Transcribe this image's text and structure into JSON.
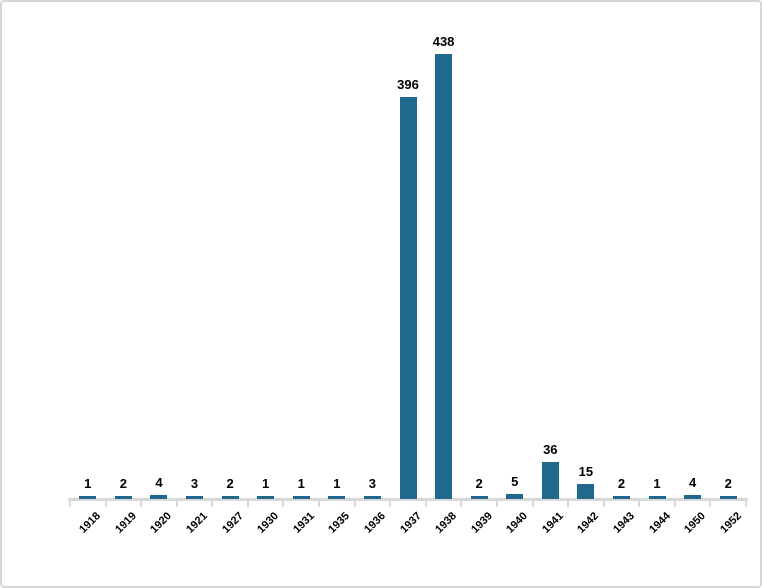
{
  "chart_data": {
    "type": "bar",
    "title": "",
    "xlabel": "",
    "ylabel": "",
    "categories": [
      "1918",
      "1919",
      "1920",
      "1921",
      "1927",
      "1930",
      "1931",
      "1935",
      "1936",
      "1937",
      "1938",
      "1939",
      "1940",
      "1941",
      "1942",
      "1943",
      "1944",
      "1950",
      "1952"
    ],
    "values": [
      1,
      2,
      4,
      3,
      2,
      1,
      1,
      1,
      3,
      396,
      438,
      2,
      5,
      36,
      15,
      2,
      1,
      4,
      2
    ],
    "ylim": [
      0,
      450
    ],
    "grid": false,
    "legend": false,
    "data_labels": true,
    "x_tick_rotation_deg": 45,
    "bar_color": "#21698c",
    "axis_color": "#d9d9d9",
    "label_color": "#000000",
    "background_color": "#ffffff",
    "frame_border_color": "#d6d6d6"
  }
}
